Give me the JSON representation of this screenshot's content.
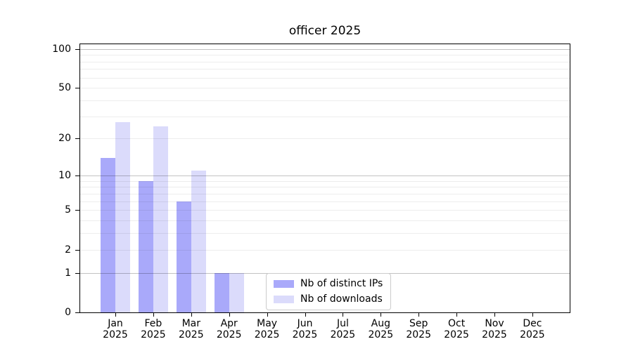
{
  "chart_data": {
    "type": "bar",
    "title": "officer 2025",
    "categories": [
      "Jan 2025",
      "Feb 2025",
      "Mar 2025",
      "Apr 2025",
      "May 2025",
      "Jun 2025",
      "Jul 2025",
      "Aug 2025",
      "Sep 2025",
      "Oct 2025",
      "Nov 2025",
      "Dec 2025"
    ],
    "series": [
      {
        "name": "Nb of distinct IPs",
        "color": "#a9a9fa",
        "values": [
          14,
          9,
          6,
          1,
          0,
          0,
          0,
          0,
          0,
          0,
          0,
          0
        ]
      },
      {
        "name": "Nb of downloads",
        "color": "#dbdbfb",
        "values": [
          27,
          25,
          11,
          1,
          0,
          0,
          0,
          0,
          0,
          0,
          0,
          0
        ]
      }
    ],
    "yticks": [
      0,
      1,
      2,
      5,
      10,
      20,
      50,
      100
    ],
    "grid_major_values": [
      1,
      10,
      100
    ],
    "grid_minor_values": [
      2,
      3,
      4,
      5,
      6,
      7,
      8,
      9,
      20,
      30,
      40,
      50,
      60,
      70,
      80,
      90
    ],
    "scale": "log1p",
    "ylim": [
      0,
      111
    ],
    "grid": true,
    "legend_position": "lower center",
    "colors": {
      "distinct_ips": "#a9a9fa",
      "downloads": "#dbdbfb",
      "grid_major": "#c7c7c7",
      "grid_minor": "#ededed",
      "axis": "#000000",
      "background": "#ffffff"
    }
  }
}
